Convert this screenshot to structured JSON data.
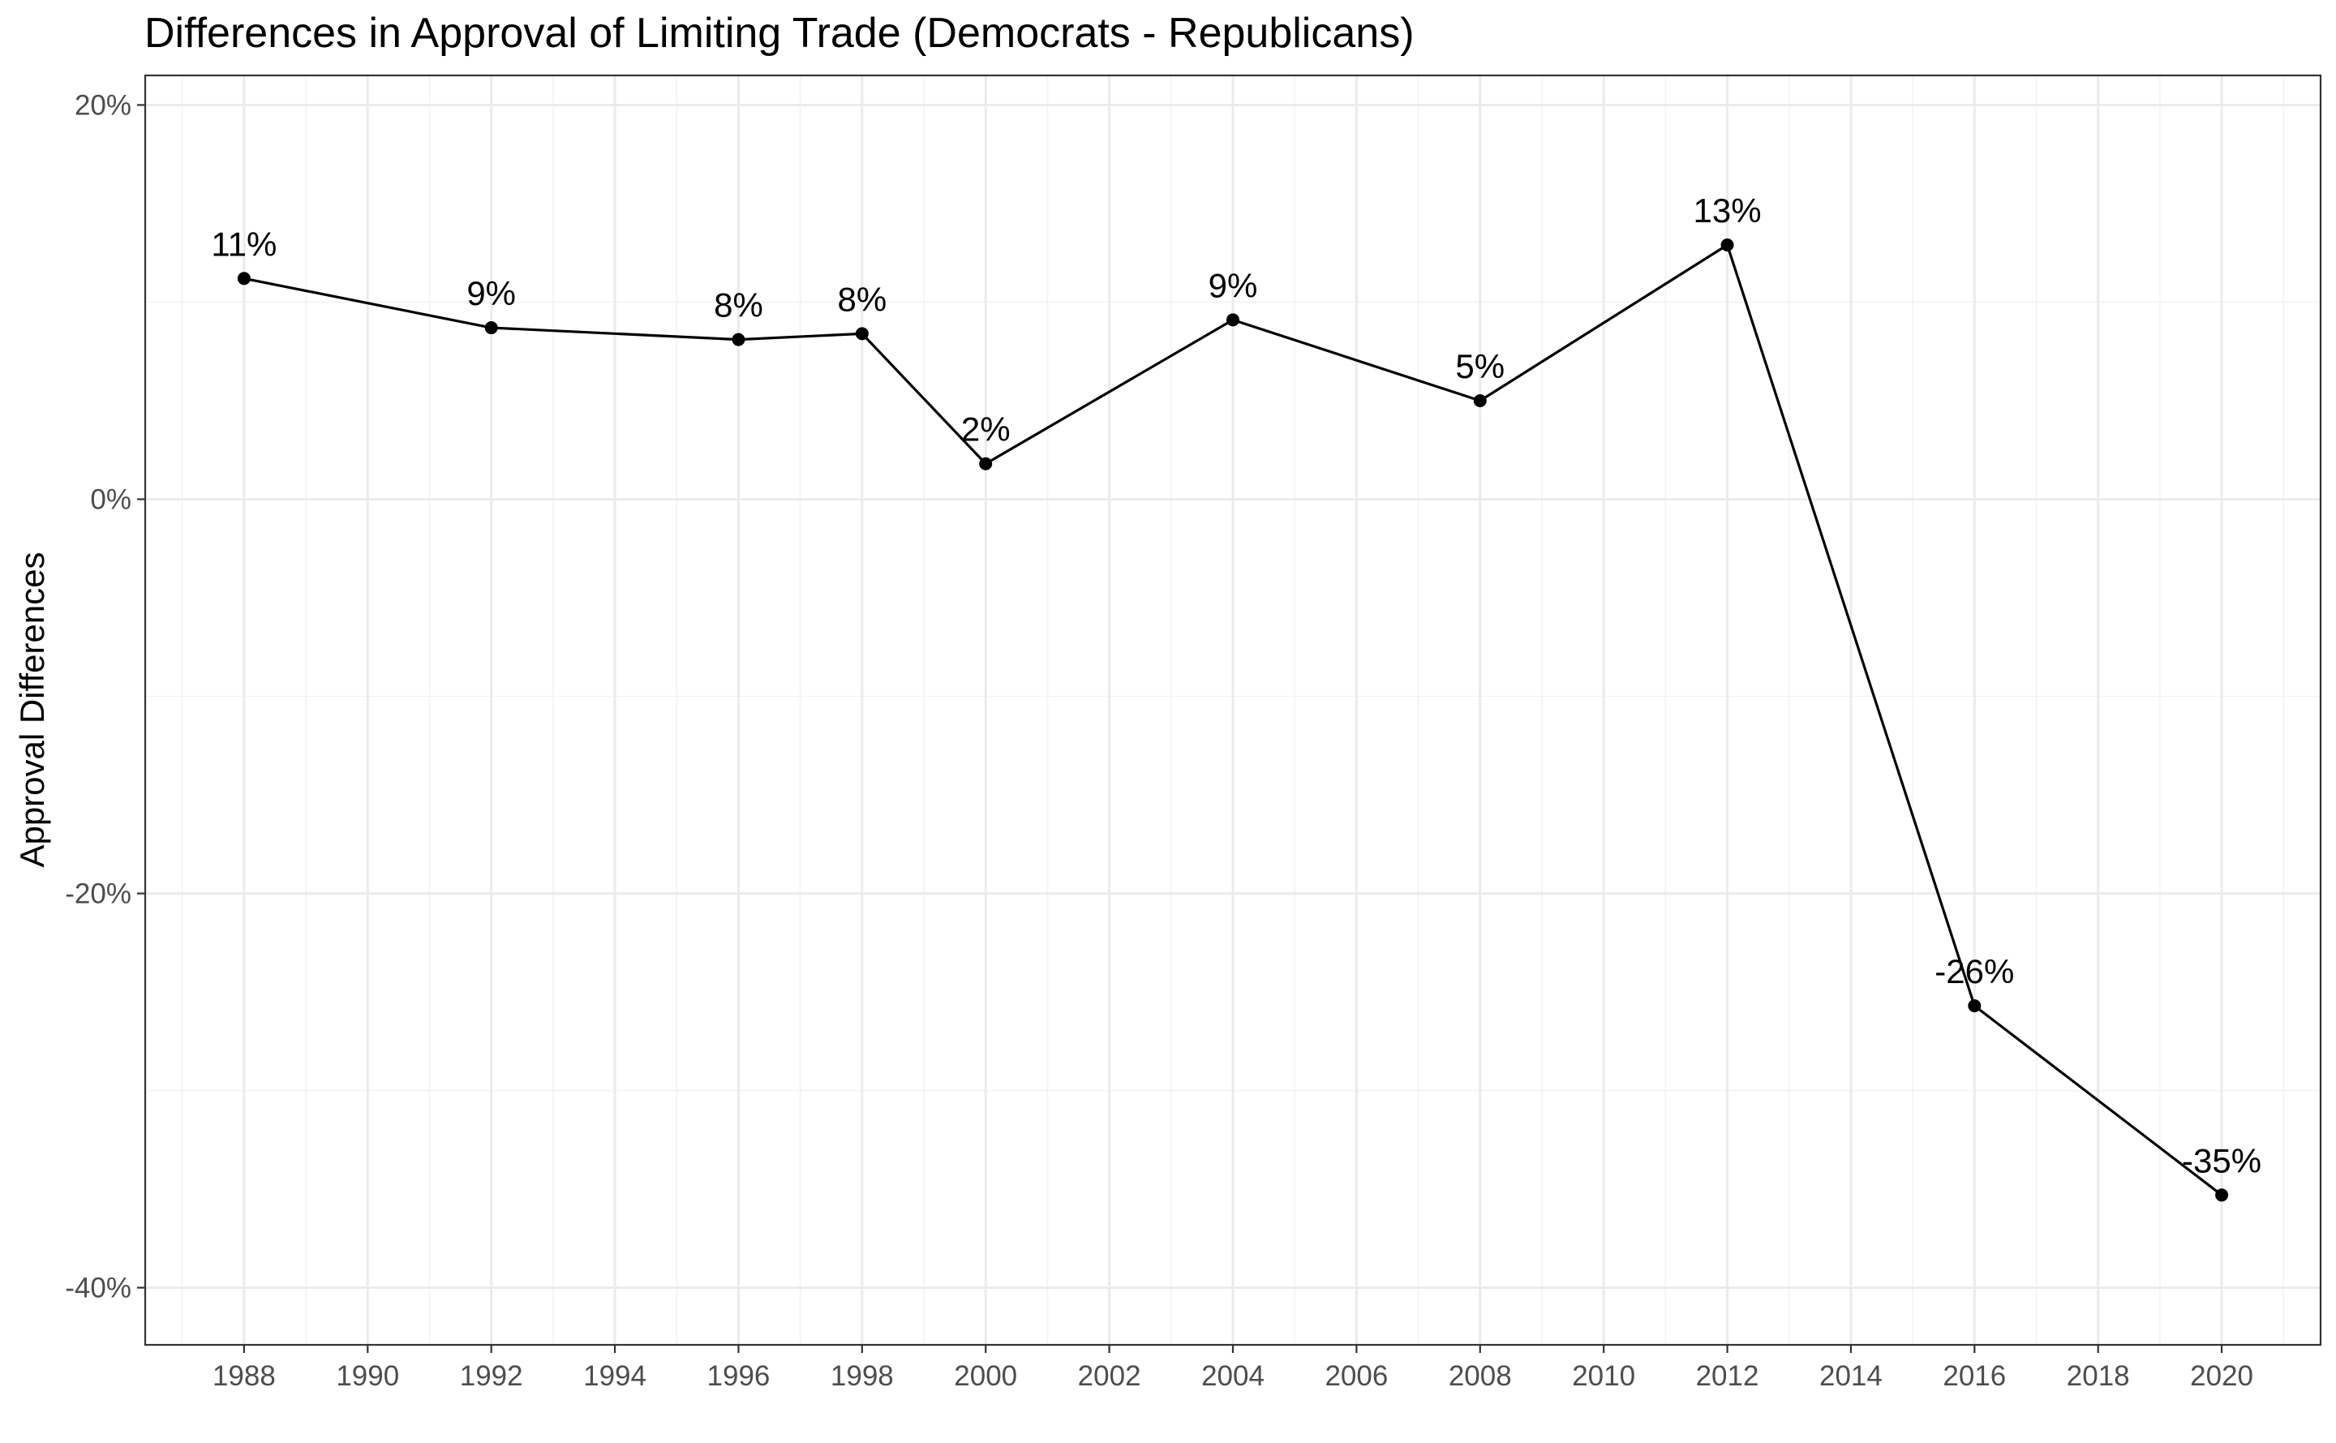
{
  "chart_data": {
    "type": "line",
    "title": "Differences in Approval of Limiting Trade (Democrats - Republicans)",
    "xlabel": "",
    "ylabel": "Approval Differences",
    "x": [
      1988,
      1992,
      1996,
      1998,
      2000,
      2004,
      2008,
      2012,
      2016,
      2020
    ],
    "series": [
      {
        "values": [
          11.2,
          8.7,
          8.1,
          8.4,
          1.8,
          9.1,
          5.0,
          12.9,
          -25.7,
          -35.3
        ],
        "labels": [
          "11%",
          "9%",
          "8%",
          "8%",
          "2%",
          "9%",
          "5%",
          "13%",
          "-26%",
          "-35%"
        ]
      }
    ],
    "xlim": [
      1986.4,
      2021.6
    ],
    "ylim": [
      -42.9,
      21.5
    ],
    "x_ticks": [
      1988,
      1990,
      1992,
      1994,
      1996,
      1998,
      2000,
      2002,
      2004,
      2006,
      2008,
      2010,
      2012,
      2014,
      2016,
      2018,
      2020
    ],
    "x_tick_labels": [
      "1988",
      "1990",
      "1992",
      "1994",
      "1996",
      "1998",
      "2000",
      "2002",
      "2004",
      "2006",
      "2008",
      "2010",
      "2012",
      "2014",
      "2016",
      "2018",
      "2020"
    ],
    "y_ticks": [
      -40,
      -20,
      0,
      20
    ],
    "y_tick_labels": [
      "-40%",
      "-20%",
      "0%",
      "20%"
    ],
    "y_minor_ticks": [
      -30,
      -10,
      10
    ],
    "grid": true,
    "legend": "none",
    "colors": {
      "line": "#000000",
      "point": "#000000",
      "grid_major": "#ebebeb",
      "grid_minor": "#f3f3f3",
      "panel_border": "#333333",
      "tick_label": "#4d4d4d",
      "text": "#000000"
    }
  }
}
